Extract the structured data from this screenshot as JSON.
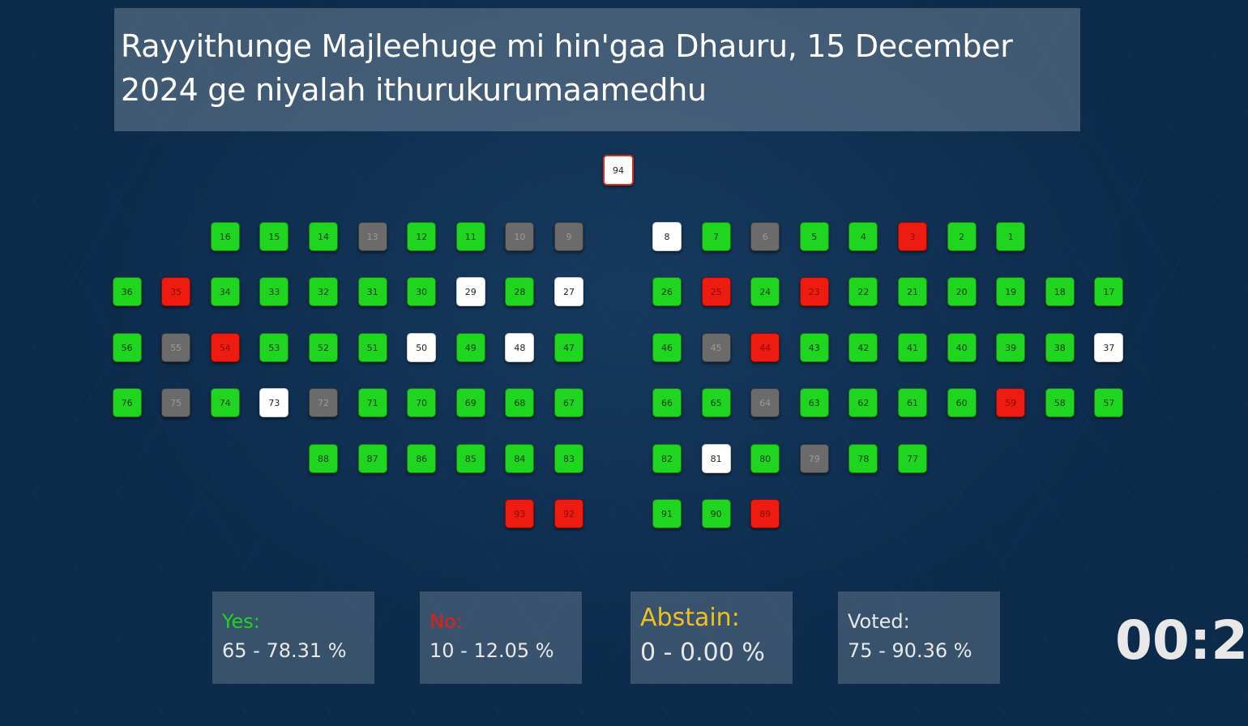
{
  "title": "Rayyithunge Majleehuge mi hin'gaa Dhauru, 15 December 2024 ge niyalah ithurukurumaamedhu",
  "colors": {
    "green": "#1fd51f",
    "red": "#ee1c10",
    "gray": "#6b6b6b",
    "white": "#ffffff",
    "yes_label": "#1fd51f",
    "no_label": "#ee1c10",
    "abstain_label": "#f2c01e",
    "voted_label": "#e8e8e8"
  },
  "speaker_seat": {
    "n": 94,
    "s": "speaker"
  },
  "rows": [
    {
      "left": [
        {
          "n": 16,
          "s": "green"
        },
        {
          "n": 15,
          "s": "green"
        },
        {
          "n": 14,
          "s": "green"
        },
        {
          "n": 13,
          "s": "gray"
        },
        {
          "n": 12,
          "s": "green"
        },
        {
          "n": 11,
          "s": "green"
        },
        {
          "n": 10,
          "s": "gray"
        },
        {
          "n": 9,
          "s": "gray"
        }
      ],
      "right": [
        {
          "n": 8,
          "s": "white"
        },
        {
          "n": 7,
          "s": "green"
        },
        {
          "n": 6,
          "s": "gray"
        },
        {
          "n": 5,
          "s": "green"
        },
        {
          "n": 4,
          "s": "green"
        },
        {
          "n": 3,
          "s": "red"
        },
        {
          "n": 2,
          "s": "green"
        },
        {
          "n": 1,
          "s": "green"
        }
      ]
    },
    {
      "left": [
        {
          "n": 36,
          "s": "green"
        },
        {
          "n": 35,
          "s": "red"
        },
        {
          "n": 34,
          "s": "green"
        },
        {
          "n": 33,
          "s": "green"
        },
        {
          "n": 32,
          "s": "green"
        },
        {
          "n": 31,
          "s": "green"
        },
        {
          "n": 30,
          "s": "green"
        },
        {
          "n": 29,
          "s": "white"
        },
        {
          "n": 28,
          "s": "green"
        },
        {
          "n": 27,
          "s": "white"
        }
      ],
      "right": [
        {
          "n": 26,
          "s": "green"
        },
        {
          "n": 25,
          "s": "red"
        },
        {
          "n": 24,
          "s": "green"
        },
        {
          "n": 23,
          "s": "red"
        },
        {
          "n": 22,
          "s": "green"
        },
        {
          "n": 21,
          "s": "green"
        },
        {
          "n": 20,
          "s": "green"
        },
        {
          "n": 19,
          "s": "green"
        },
        {
          "n": 18,
          "s": "green"
        },
        {
          "n": 17,
          "s": "green"
        }
      ]
    },
    {
      "left": [
        {
          "n": 56,
          "s": "green"
        },
        {
          "n": 55,
          "s": "gray"
        },
        {
          "n": 54,
          "s": "red"
        },
        {
          "n": 53,
          "s": "green"
        },
        {
          "n": 52,
          "s": "green"
        },
        {
          "n": 51,
          "s": "green"
        },
        {
          "n": 50,
          "s": "white"
        },
        {
          "n": 49,
          "s": "green"
        },
        {
          "n": 48,
          "s": "white"
        },
        {
          "n": 47,
          "s": "green"
        }
      ],
      "right": [
        {
          "n": 46,
          "s": "green"
        },
        {
          "n": 45,
          "s": "gray"
        },
        {
          "n": 44,
          "s": "red"
        },
        {
          "n": 43,
          "s": "green"
        },
        {
          "n": 42,
          "s": "green"
        },
        {
          "n": 41,
          "s": "green"
        },
        {
          "n": 40,
          "s": "green"
        },
        {
          "n": 39,
          "s": "green"
        },
        {
          "n": 38,
          "s": "green"
        },
        {
          "n": 37,
          "s": "white"
        }
      ]
    },
    {
      "left": [
        {
          "n": 76,
          "s": "green"
        },
        {
          "n": 75,
          "s": "gray"
        },
        {
          "n": 74,
          "s": "green"
        },
        {
          "n": 73,
          "s": "white"
        },
        {
          "n": 72,
          "s": "gray"
        },
        {
          "n": 71,
          "s": "green"
        },
        {
          "n": 70,
          "s": "green"
        },
        {
          "n": 69,
          "s": "green"
        },
        {
          "n": 68,
          "s": "green"
        },
        {
          "n": 67,
          "s": "green"
        }
      ],
      "right": [
        {
          "n": 66,
          "s": "green"
        },
        {
          "n": 65,
          "s": "green"
        },
        {
          "n": 64,
          "s": "gray"
        },
        {
          "n": 63,
          "s": "green"
        },
        {
          "n": 62,
          "s": "green"
        },
        {
          "n": 61,
          "s": "green"
        },
        {
          "n": 60,
          "s": "green"
        },
        {
          "n": 59,
          "s": "red"
        },
        {
          "n": 58,
          "s": "green"
        },
        {
          "n": 57,
          "s": "green"
        }
      ]
    },
    {
      "left": [
        {
          "n": 88,
          "s": "green"
        },
        {
          "n": 87,
          "s": "green"
        },
        {
          "n": 86,
          "s": "green"
        },
        {
          "n": 85,
          "s": "green"
        },
        {
          "n": 84,
          "s": "green"
        },
        {
          "n": 83,
          "s": "green"
        }
      ],
      "right": [
        {
          "n": 82,
          "s": "green"
        },
        {
          "n": 81,
          "s": "white"
        },
        {
          "n": 80,
          "s": "green"
        },
        {
          "n": 79,
          "s": "gray"
        },
        {
          "n": 78,
          "s": "green"
        },
        {
          "n": 77,
          "s": "green"
        }
      ]
    },
    {
      "left": [
        {
          "n": 93,
          "s": "red"
        },
        {
          "n": 92,
          "s": "red"
        }
      ],
      "right": [
        {
          "n": 91,
          "s": "green"
        },
        {
          "n": 90,
          "s": "green"
        },
        {
          "n": 89,
          "s": "red"
        }
      ]
    }
  ],
  "stats": {
    "yes": {
      "label": "Yes:",
      "value": "65 - 78.31 %"
    },
    "no": {
      "label": "No:",
      "value": "10 - 12.05 %"
    },
    "abstain": {
      "label": "Abstain:",
      "value": "0 - 0.00 %"
    },
    "voted": {
      "label": "Voted:",
      "value": "75 - 90.36 %"
    }
  },
  "timer": "00:2"
}
